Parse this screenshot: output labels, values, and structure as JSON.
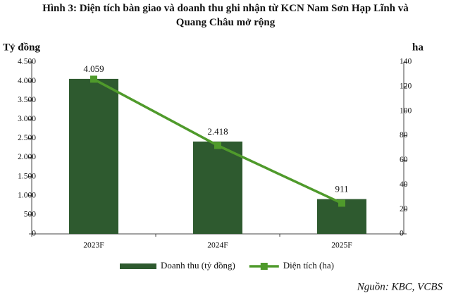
{
  "chart_data": {
    "type": "combo",
    "title": "Hình 3: Diện tích bàn giao và doanh thu ghi nhận từ KCN Nam Sơn Hạp Lĩnh và Quang Châu mở rộng",
    "ylabel": "Tỷ đồng",
    "y2label": "ha",
    "categories": [
      "2023F",
      "2024F",
      "2025F"
    ],
    "series": [
      {
        "name": "Doanh thu (tỷ đồng)",
        "type": "bar",
        "color": "#2e5a2f",
        "values": [
          4059,
          2418,
          911
        ],
        "value_labels": [
          "4.059",
          "2.418",
          "911"
        ]
      },
      {
        "name": "Diện tích (ha)",
        "type": "line",
        "axis": "y2",
        "color": "#4f9a2b",
        "values": [
          126,
          72,
          25
        ]
      }
    ],
    "ylim": [
      0,
      4500
    ],
    "yticks": [
      0,
      500,
      {
        "value": 1000,
        "label": "1.000"
      },
      {
        "value": 1500,
        "label": "1.500"
      },
      {
        "value": 2000,
        "label": "2.000"
      },
      {
        "value": 2500,
        "label": "2.500"
      },
      {
        "value": 3000,
        "label": "3.000"
      },
      {
        "value": 3500,
        "label": "3.500"
      },
      {
        "value": 4000,
        "label": "4.000"
      },
      {
        "value": 4500,
        "label": "4.500"
      }
    ],
    "y2lim": [
      0,
      140
    ],
    "y2ticks": [
      0,
      20,
      40,
      60,
      80,
      100,
      120,
      140
    ],
    "legend": "bottom",
    "source": "Nguồn: KBC, VCBS"
  }
}
